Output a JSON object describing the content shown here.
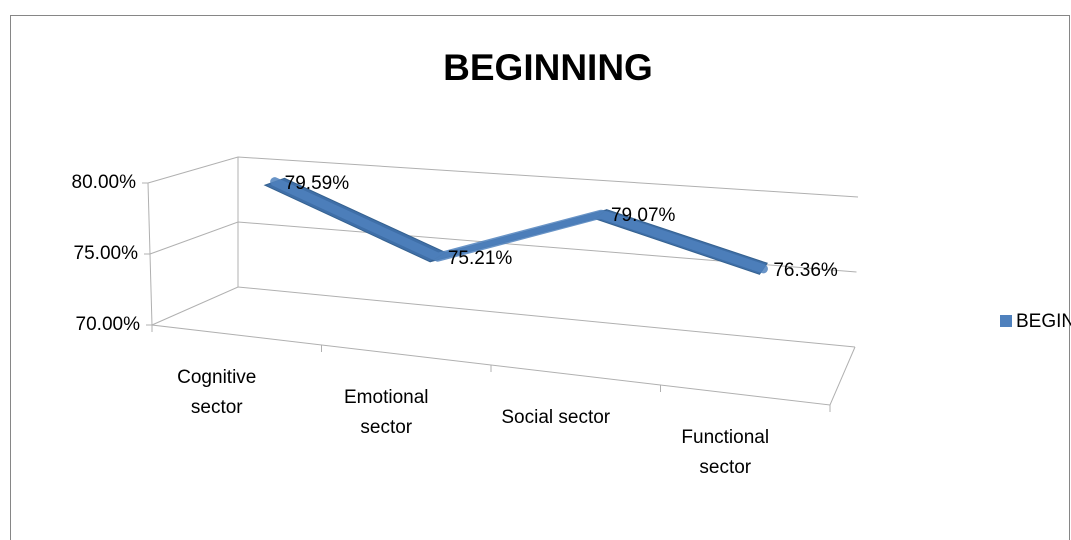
{
  "chart_data": {
    "type": "line",
    "title": "BEGINNING",
    "categories": [
      "Cognitive sector",
      "Emotional sector",
      "Social sector",
      "Functional sector"
    ],
    "series": [
      {
        "name": "BEGINNING",
        "color": "#4f81bd",
        "values": [
          79.59,
          75.21,
          79.07,
          76.36
        ],
        "value_labels": [
          "79.59%",
          "75.21%",
          "79.07%",
          "76.36%"
        ]
      }
    ],
    "ylim": [
      70,
      80
    ],
    "yticks": [
      {
        "value": 70,
        "label": "70.00%"
      },
      {
        "value": 75,
        "label": "75.00%"
      },
      {
        "value": 80,
        "label": "80.00%"
      }
    ],
    "grid": true,
    "legend": "right"
  }
}
